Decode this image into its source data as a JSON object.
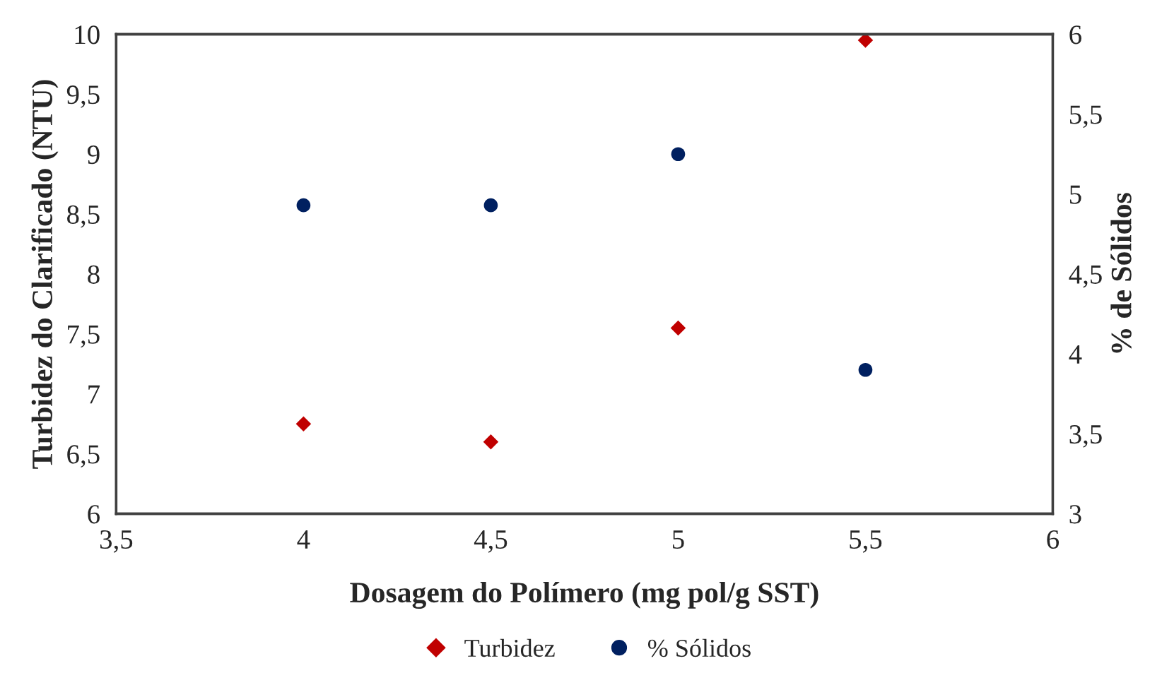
{
  "chart_data": {
    "type": "scatter",
    "xlabel": "Dosagem do Polímero (mg pol/g SST)",
    "ylabel": "Turbidez do Clarificado (NTU)",
    "y2label": "% de Sólidos",
    "x": [
      4,
      4.5,
      5,
      5.5
    ],
    "series": [
      {
        "name": "Turbidez",
        "color": "#c00000",
        "marker": "diamond",
        "values": [
          6.75,
          6.6,
          7.55,
          9.95
        ]
      },
      {
        "name": "% Sólidos",
        "color": "#002060",
        "marker": "circle",
        "axis": "y2",
        "values": [
          4.93,
          4.93,
          5.25,
          3.9
        ]
      }
    ],
    "xlim": [
      3.5,
      6
    ],
    "xticks": [
      {
        "value": 3.5,
        "label": "3,5"
      },
      4,
      {
        "value": 4.5,
        "label": "4,5"
      },
      5,
      {
        "value": 5.5,
        "label": "5,5"
      },
      6
    ],
    "ylim": [
      6,
      10
    ],
    "yticks": [
      6,
      {
        "value": 6.5,
        "label": "6,5"
      },
      7,
      {
        "value": 7.5,
        "label": "7,5"
      },
      8,
      {
        "value": 8.5,
        "label": "8,5"
      },
      9,
      {
        "value": 9.5,
        "label": "9,5"
      },
      10
    ],
    "y2lim": [
      3,
      6
    ],
    "y2ticks": [
      3,
      {
        "value": 3.5,
        "label": "3,5"
      },
      4,
      {
        "value": 4.5,
        "label": "4,5"
      },
      5,
      {
        "value": 5.5,
        "label": "5,5"
      },
      6
    ],
    "grid": false,
    "legend": "bottom"
  }
}
